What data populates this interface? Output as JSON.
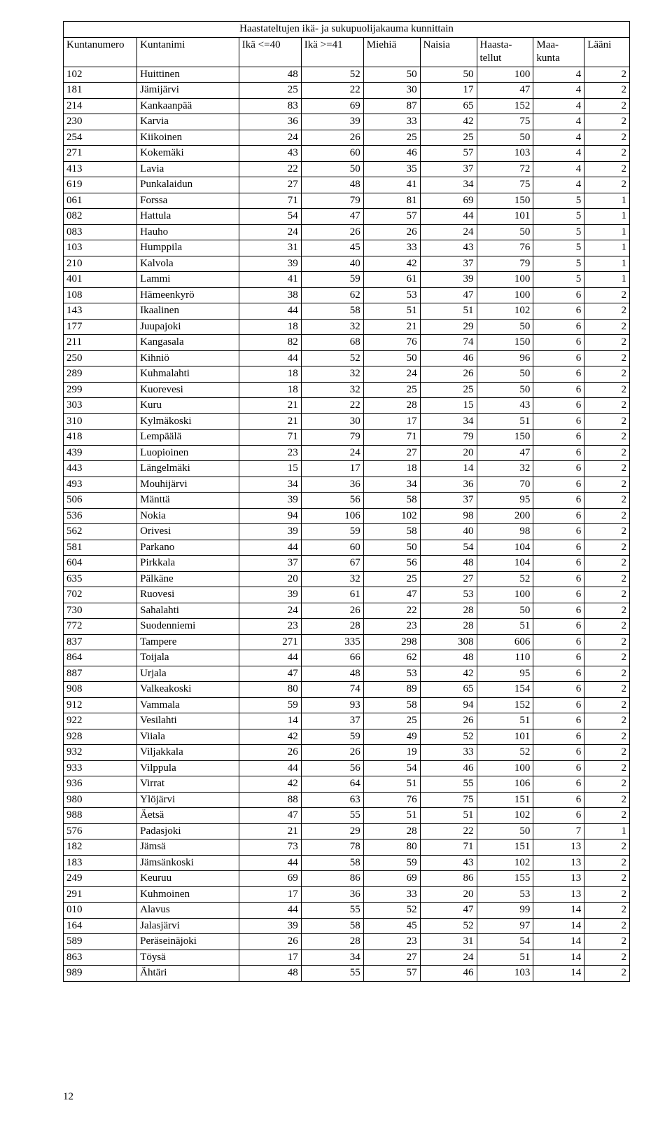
{
  "title": "Haastateltujen ikä- ja sukupuolijakauma kunnittain",
  "columns": [
    "Kuntanumero",
    "Kuntanimi",
    "Ikä <=40",
    "Ikä >=41",
    "Miehiä",
    "Naisia",
    "Haasta-\ntellut",
    "Maa-\nkunta",
    "Lääni"
  ],
  "rows": [
    [
      "102",
      "Huittinen",
      "48",
      "52",
      "50",
      "50",
      "100",
      "4",
      "2"
    ],
    [
      "181",
      "Jämijärvi",
      "25",
      "22",
      "30",
      "17",
      "47",
      "4",
      "2"
    ],
    [
      "214",
      "Kankaanpää",
      "83",
      "69",
      "87",
      "65",
      "152",
      "4",
      "2"
    ],
    [
      "230",
      "Karvia",
      "36",
      "39",
      "33",
      "42",
      "75",
      "4",
      "2"
    ],
    [
      "254",
      "Kiikoinen",
      "24",
      "26",
      "25",
      "25",
      "50",
      "4",
      "2"
    ],
    [
      "271",
      "Kokemäki",
      "43",
      "60",
      "46",
      "57",
      "103",
      "4",
      "2"
    ],
    [
      "413",
      "Lavia",
      "22",
      "50",
      "35",
      "37",
      "72",
      "4",
      "2"
    ],
    [
      "619",
      "Punkalaidun",
      "27",
      "48",
      "41",
      "34",
      "75",
      "4",
      "2"
    ],
    [
      "061",
      "Forssa",
      "71",
      "79",
      "81",
      "69",
      "150",
      "5",
      "1"
    ],
    [
      "082",
      "Hattula",
      "54",
      "47",
      "57",
      "44",
      "101",
      "5",
      "1"
    ],
    [
      "083",
      "Hauho",
      "24",
      "26",
      "26",
      "24",
      "50",
      "5",
      "1"
    ],
    [
      "103",
      "Humppila",
      "31",
      "45",
      "33",
      "43",
      "76",
      "5",
      "1"
    ],
    [
      "210",
      "Kalvola",
      "39",
      "40",
      "42",
      "37",
      "79",
      "5",
      "1"
    ],
    [
      "401",
      "Lammi",
      "41",
      "59",
      "61",
      "39",
      "100",
      "5",
      "1"
    ],
    [
      "108",
      "Hämeenkyrö",
      "38",
      "62",
      "53",
      "47",
      "100",
      "6",
      "2"
    ],
    [
      "143",
      "Ikaalinen",
      "44",
      "58",
      "51",
      "51",
      "102",
      "6",
      "2"
    ],
    [
      "177",
      "Juupajoki",
      "18",
      "32",
      "21",
      "29",
      "50",
      "6",
      "2"
    ],
    [
      "211",
      "Kangasala",
      "82",
      "68",
      "76",
      "74",
      "150",
      "6",
      "2"
    ],
    [
      "250",
      "Kihniö",
      "44",
      "52",
      "50",
      "46",
      "96",
      "6",
      "2"
    ],
    [
      "289",
      "Kuhmalahti",
      "18",
      "32",
      "24",
      "26",
      "50",
      "6",
      "2"
    ],
    [
      "299",
      "Kuorevesi",
      "18",
      "32",
      "25",
      "25",
      "50",
      "6",
      "2"
    ],
    [
      "303",
      "Kuru",
      "21",
      "22",
      "28",
      "15",
      "43",
      "6",
      "2"
    ],
    [
      "310",
      "Kylmäkoski",
      "21",
      "30",
      "17",
      "34",
      "51",
      "6",
      "2"
    ],
    [
      "418",
      "Lempäälä",
      "71",
      "79",
      "71",
      "79",
      "150",
      "6",
      "2"
    ],
    [
      "439",
      "Luopioinen",
      "23",
      "24",
      "27",
      "20",
      "47",
      "6",
      "2"
    ],
    [
      "443",
      "Längelmäki",
      "15",
      "17",
      "18",
      "14",
      "32",
      "6",
      "2"
    ],
    [
      "493",
      "Mouhijärvi",
      "34",
      "36",
      "34",
      "36",
      "70",
      "6",
      "2"
    ],
    [
      "506",
      "Mänttä",
      "39",
      "56",
      "58",
      "37",
      "95",
      "6",
      "2"
    ],
    [
      "536",
      "Nokia",
      "94",
      "106",
      "102",
      "98",
      "200",
      "6",
      "2"
    ],
    [
      "562",
      "Orivesi",
      "39",
      "59",
      "58",
      "40",
      "98",
      "6",
      "2"
    ],
    [
      "581",
      "Parkano",
      "44",
      "60",
      "50",
      "54",
      "104",
      "6",
      "2"
    ],
    [
      "604",
      "Pirkkala",
      "37",
      "67",
      "56",
      "48",
      "104",
      "6",
      "2"
    ],
    [
      "635",
      "Pälkäne",
      "20",
      "32",
      "25",
      "27",
      "52",
      "6",
      "2"
    ],
    [
      "702",
      "Ruovesi",
      "39",
      "61",
      "47",
      "53",
      "100",
      "6",
      "2"
    ],
    [
      "730",
      "Sahalahti",
      "24",
      "26",
      "22",
      "28",
      "50",
      "6",
      "2"
    ],
    [
      "772",
      "Suodenniemi",
      "23",
      "28",
      "23",
      "28",
      "51",
      "6",
      "2"
    ],
    [
      "837",
      "Tampere",
      "271",
      "335",
      "298",
      "308",
      "606",
      "6",
      "2"
    ],
    [
      "864",
      "Toijala",
      "44",
      "66",
      "62",
      "48",
      "110",
      "6",
      "2"
    ],
    [
      "887",
      "Urjala",
      "47",
      "48",
      "53",
      "42",
      "95",
      "6",
      "2"
    ],
    [
      "908",
      "Valkeakoski",
      "80",
      "74",
      "89",
      "65",
      "154",
      "6",
      "2"
    ],
    [
      "912",
      "Vammala",
      "59",
      "93",
      "58",
      "94",
      "152",
      "6",
      "2"
    ],
    [
      "922",
      "Vesilahti",
      "14",
      "37",
      "25",
      "26",
      "51",
      "6",
      "2"
    ],
    [
      "928",
      "Viiala",
      "42",
      "59",
      "49",
      "52",
      "101",
      "6",
      "2"
    ],
    [
      "932",
      "Viljakkala",
      "26",
      "26",
      "19",
      "33",
      "52",
      "6",
      "2"
    ],
    [
      "933",
      "Vilppula",
      "44",
      "56",
      "54",
      "46",
      "100",
      "6",
      "2"
    ],
    [
      "936",
      "Virrat",
      "42",
      "64",
      "51",
      "55",
      "106",
      "6",
      "2"
    ],
    [
      "980",
      "Ylöjärvi",
      "88",
      "63",
      "76",
      "75",
      "151",
      "6",
      "2"
    ],
    [
      "988",
      "Äetsä",
      "47",
      "55",
      "51",
      "51",
      "102",
      "6",
      "2"
    ],
    [
      "576",
      "Padasjoki",
      "21",
      "29",
      "28",
      "22",
      "50",
      "7",
      "1"
    ],
    [
      "182",
      "Jämsä",
      "73",
      "78",
      "80",
      "71",
      "151",
      "13",
      "2"
    ],
    [
      "183",
      "Jämsänkoski",
      "44",
      "58",
      "59",
      "43",
      "102",
      "13",
      "2"
    ],
    [
      "249",
      "Keuruu",
      "69",
      "86",
      "69",
      "86",
      "155",
      "13",
      "2"
    ],
    [
      "291",
      "Kuhmoinen",
      "17",
      "36",
      "33",
      "20",
      "53",
      "13",
      "2"
    ],
    [
      "010",
      "Alavus",
      "44",
      "55",
      "52",
      "47",
      "99",
      "14",
      "2"
    ],
    [
      "164",
      "Jalasjärvi",
      "39",
      "58",
      "45",
      "52",
      "97",
      "14",
      "2"
    ],
    [
      "589",
      "Peräseinäjoki",
      "26",
      "28",
      "23",
      "31",
      "54",
      "14",
      "2"
    ],
    [
      "863",
      "Töysä",
      "17",
      "34",
      "27",
      "24",
      "51",
      "14",
      "2"
    ],
    [
      "989",
      "Ähtäri",
      "48",
      "55",
      "57",
      "46",
      "103",
      "14",
      "2"
    ]
  ],
  "page_number": "12",
  "style": {
    "bg": "#ffffff",
    "fg": "#000000",
    "border": "#000000",
    "title_fontsize": 19,
    "body_fontsize": 15,
    "font_family": "Times New Roman"
  }
}
